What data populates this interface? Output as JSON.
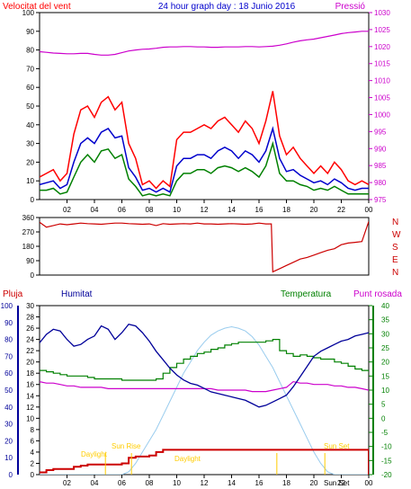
{
  "header": {
    "title": "24 hour graph day : 18 Junio 2016",
    "wind_label": "Velocitat del vent",
    "pressure_label": "Pressió"
  },
  "labels": {
    "rain": "Pluja",
    "humidity": "Humitat",
    "temperature": "Temperatura",
    "dewpoint": "Punt rosada",
    "events": [
      "Daylight",
      "Sun Rise",
      "Daylight",
      "Sun Set"
    ]
  },
  "colors": {
    "wind_gust": "#ff0000",
    "wind_avg": "#0000cc",
    "wind_min": "#008000",
    "pressure": "#cc00cc",
    "direction": "#cc0000",
    "humidity": "#000099",
    "temperature": "#008000",
    "dewpoint": "#cc00cc",
    "rain": "#cc0000",
    "sun": "#99ccee",
    "events": "#ffcc00"
  },
  "chart_data": [
    {
      "type": "line",
      "x_ticks": [
        "02",
        "04",
        "06",
        "08",
        "10",
        "12",
        "14",
        "16",
        "18",
        "20",
        "22",
        "00"
      ],
      "title": "24 hour graph day : 18 Junio 2016",
      "ylabel": "Velocitat del vent",
      "ylim": [
        0,
        100
      ],
      "y_ticks": [
        0,
        10,
        20,
        30,
        40,
        50,
        60,
        70,
        80,
        90,
        100
      ],
      "y2label": "Pressió",
      "y2lim": [
        975,
        1030
      ],
      "y2_ticks": [
        975,
        980,
        985,
        990,
        995,
        1000,
        1005,
        1010,
        1015,
        1020,
        1025,
        1030
      ],
      "x": [
        0,
        0.5,
        1,
        1.5,
        2,
        2.5,
        3,
        3.5,
        4,
        4.5,
        5,
        5.5,
        6,
        6.5,
        7,
        7.5,
        8,
        8.5,
        9,
        9.5,
        10,
        10.5,
        11,
        11.5,
        12,
        12.5,
        13,
        13.5,
        14,
        14.5,
        15,
        15.5,
        16,
        16.5,
        17,
        17.5,
        18,
        18.5,
        19,
        19.5,
        20,
        20.5,
        21,
        21.5,
        22,
        22.5,
        23,
        23.5,
        24
      ],
      "series": [
        {
          "name": "gust",
          "values": [
            12,
            14,
            16,
            10,
            14,
            35,
            48,
            50,
            44,
            52,
            55,
            48,
            52,
            30,
            22,
            8,
            10,
            6,
            10,
            7,
            32,
            36,
            36,
            38,
            40,
            38,
            42,
            44,
            40,
            36,
            42,
            38,
            30,
            42,
            58,
            34,
            24,
            28,
            22,
            18,
            14,
            18,
            14,
            20,
            16,
            10,
            8,
            10,
            8
          ]
        },
        {
          "name": "average",
          "values": [
            8,
            9,
            10,
            6,
            8,
            20,
            30,
            33,
            30,
            36,
            38,
            33,
            34,
            17,
            12,
            5,
            6,
            4,
            6,
            4,
            18,
            22,
            22,
            24,
            24,
            22,
            26,
            28,
            26,
            22,
            26,
            24,
            20,
            26,
            38,
            22,
            15,
            16,
            13,
            11,
            9,
            10,
            8,
            11,
            9,
            6,
            5,
            6,
            6
          ]
        },
        {
          "name": "minimum",
          "values": [
            5,
            5,
            6,
            3,
            4,
            12,
            20,
            24,
            20,
            26,
            27,
            22,
            24,
            11,
            7,
            2,
            3,
            2,
            3,
            2,
            10,
            14,
            14,
            16,
            16,
            14,
            17,
            18,
            17,
            15,
            17,
            15,
            12,
            18,
            30,
            14,
            10,
            10,
            8,
            7,
            5,
            6,
            5,
            7,
            5,
            3,
            3,
            3,
            3
          ]
        },
        {
          "name": "pressure",
          "values": [
            1018.5,
            1018.3,
            1018.1,
            1018,
            1017.9,
            1017.9,
            1018,
            1018,
            1017.7,
            1017.5,
            1017.5,
            1017.7,
            1018.2,
            1018.7,
            1019,
            1019.2,
            1019.3,
            1019.5,
            1019.8,
            1019.9,
            1019.9,
            1020,
            1020,
            1019.9,
            1019.9,
            1019.8,
            1019.8,
            1019.9,
            1019.9,
            1019.9,
            1020,
            1020,
            1019.9,
            1020,
            1020.1,
            1020.4,
            1020.8,
            1021.3,
            1021.7,
            1022,
            1022.2,
            1022.6,
            1023,
            1023.4,
            1023.8,
            1024.1,
            1024.3,
            1024.5,
            1024.5
          ]
        }
      ]
    },
    {
      "type": "line",
      "x_ticks": [
        "02",
        "04",
        "06",
        "08",
        "10",
        "12",
        "14",
        "16",
        "18",
        "20",
        "22",
        "00"
      ],
      "y_ticks": [
        0,
        90,
        180,
        270,
        360
      ],
      "ylim": [
        0,
        360
      ],
      "y2_ticks": [
        "N",
        "W",
        "S",
        "E",
        "N"
      ],
      "x": [
        0,
        0.5,
        1,
        1.5,
        2,
        2.5,
        3,
        3.5,
        4,
        4.5,
        5,
        5.5,
        6,
        6.5,
        7,
        7.5,
        8,
        8.5,
        9,
        9.5,
        10,
        10.5,
        11,
        11.5,
        12,
        12.5,
        13,
        13.5,
        14,
        14.5,
        15,
        15.5,
        16,
        16.5,
        16.9,
        17,
        17.5,
        18,
        18.5,
        19,
        19.5,
        20,
        20.5,
        21,
        21.5,
        22,
        22.5,
        23,
        23.5,
        24
      ],
      "series": [
        {
          "name": "direction",
          "values": [
            330,
            300,
            310,
            320,
            315,
            320,
            325,
            322,
            320,
            318,
            322,
            325,
            325,
            322,
            320,
            318,
            320,
            310,
            322,
            318,
            320,
            322,
            320,
            325,
            320,
            320,
            318,
            320,
            322,
            320,
            318,
            320,
            325,
            320,
            320,
            20,
            40,
            60,
            80,
            100,
            110,
            125,
            140,
            155,
            165,
            190,
            200,
            205,
            210,
            335
          ]
        }
      ]
    },
    {
      "type": "line",
      "x_ticks": [
        "02",
        "04",
        "06",
        "08",
        "10",
        "12",
        "14",
        "16",
        "18",
        "20",
        "22",
        "00"
      ],
      "rain_ticks": [
        0,
        2,
        4,
        6,
        8,
        10,
        12,
        14,
        16,
        18,
        20,
        22,
        24,
        26,
        28,
        30
      ],
      "rain_lim": [
        0,
        30
      ],
      "humidity_ticks": [
        0,
        10,
        20,
        30,
        40,
        50,
        60,
        70,
        80,
        90,
        100
      ],
      "humidity_lim": [
        0,
        100
      ],
      "temp_ticks": [
        -20,
        -15,
        -10,
        -5,
        0,
        5,
        10,
        15,
        20,
        25,
        30,
        35,
        40
      ],
      "temp_lim": [
        -20,
        40
      ],
      "x": [
        0,
        0.5,
        1,
        1.5,
        2,
        2.5,
        3,
        3.5,
        4,
        4.5,
        5,
        5.5,
        6,
        6.5,
        7,
        7.5,
        8,
        8.5,
        9,
        9.5,
        10,
        10.5,
        11,
        11.5,
        12,
        12.5,
        13,
        13.5,
        14,
        14.5,
        15,
        15.5,
        16,
        16.5,
        17,
        17.5,
        18,
        18.5,
        19,
        19.5,
        20,
        20.5,
        21,
        21.5,
        22,
        22.5,
        23,
        23.5,
        24
      ],
      "series": [
        {
          "name": "humidity",
          "values": [
            78,
            83,
            86,
            85,
            80,
            76,
            77,
            80,
            82,
            88,
            86,
            80,
            84,
            89,
            88,
            84,
            79,
            73,
            68,
            63,
            59,
            56,
            54,
            53,
            51,
            49,
            48,
            47,
            46,
            45,
            44,
            42,
            40,
            41,
            43,
            45,
            47,
            52,
            58,
            64,
            70,
            73,
            75,
            77,
            79,
            80,
            82,
            83,
            84
          ]
        },
        {
          "name": "temperature",
          "values": [
            17,
            16.5,
            16,
            15.5,
            15,
            15,
            15,
            14.5,
            14,
            14,
            14,
            14,
            13.5,
            13.5,
            13.5,
            13.5,
            13.5,
            14,
            16,
            18,
            19.5,
            21,
            22,
            23,
            23.5,
            24.5,
            25,
            26,
            26.5,
            27,
            27,
            27,
            27,
            27.5,
            28,
            24,
            23,
            22,
            22.5,
            22,
            21.5,
            21,
            21,
            20,
            19.5,
            18.5,
            17.5,
            17,
            16.5
          ]
        },
        {
          "name": "dewpoint",
          "values": [
            13,
            12.5,
            12.5,
            12,
            11.5,
            11.5,
            11,
            11,
            11,
            11,
            10.5,
            10.5,
            10.5,
            10.5,
            10.5,
            10.5,
            10.5,
            10.5,
            10.5,
            10.5,
            10.5,
            10.5,
            10.5,
            10.5,
            10.5,
            10.5,
            10,
            10,
            10,
            10,
            10,
            9.5,
            9.5,
            9.5,
            10,
            10.5,
            11,
            13,
            12.5,
            12.5,
            12,
            12,
            12,
            11.5,
            11.5,
            11,
            11,
            10.5,
            10
          ]
        },
        {
          "name": "rain",
          "values": [
            0.4,
            0.8,
            1,
            1,
            1,
            1.4,
            1.6,
            1.8,
            1.8,
            1.8,
            1.8,
            1.8,
            2,
            3,
            3.2,
            3.2,
            3.4,
            4,
            4.4,
            4.4,
            4.4,
            4.4,
            4.4,
            4.4,
            4.4,
            4.4,
            4.4,
            4.4,
            4.4,
            4.4,
            4.4,
            4.4,
            4.4,
            4.4,
            4.4,
            4.4,
            4.4,
            4.4,
            4.4,
            4.4,
            4.4,
            4.4,
            4.4,
            4.4,
            4.4,
            4.4,
            4.4,
            4.4,
            0
          ]
        },
        {
          "name": "sun",
          "values": [
            -20,
            -20,
            -20,
            -20,
            -20,
            -20,
            -20,
            -20,
            -20,
            -20,
            -20,
            -20,
            -20,
            -19,
            -16,
            -12,
            -8,
            -4,
            1,
            6,
            11,
            16,
            20,
            24,
            27,
            29.5,
            31,
            32,
            32.5,
            32,
            31,
            29,
            26,
            22,
            18,
            13,
            8,
            3,
            -2,
            -7,
            -12,
            -16,
            -19,
            -20,
            -20,
            -20,
            -20,
            -20,
            -20
          ]
        }
      ]
    }
  ]
}
